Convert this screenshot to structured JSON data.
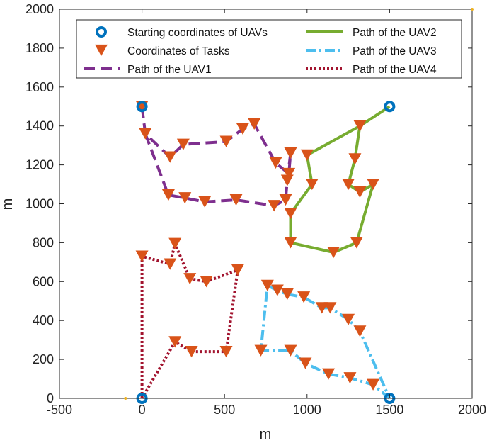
{
  "chart_data": {
    "type": "line",
    "title": "",
    "xlabel": "m",
    "ylabel": "m",
    "xlim": [
      -500,
      2000
    ],
    "ylim": [
      0,
      2000
    ],
    "xticks": [
      -500,
      0,
      500,
      1000,
      1500,
      2000
    ],
    "yticks": [
      0,
      200,
      400,
      600,
      800,
      1000,
      1200,
      1400,
      1600,
      1800,
      2000
    ],
    "grid": false,
    "legend_position": "top",
    "starts": [
      [
        0,
        1500
      ],
      [
        1500,
        1500
      ],
      [
        0,
        0
      ],
      [
        1500,
        0
      ]
    ],
    "tasks": [
      [
        0,
        1500
      ],
      [
        20,
        1360
      ],
      [
        170,
        1240
      ],
      [
        250,
        1305
      ],
      [
        510,
        1320
      ],
      [
        610,
        1385
      ],
      [
        680,
        1410
      ],
      [
        810,
        1210
      ],
      [
        890,
        1155
      ],
      [
        900,
        1260
      ],
      [
        880,
        1120
      ],
      [
        870,
        1020
      ],
      [
        800,
        990
      ],
      [
        570,
        1020
      ],
      [
        380,
        1010
      ],
      [
        260,
        1030
      ],
      [
        160,
        1045
      ],
      [
        1000,
        1250
      ],
      [
        1030,
        1100
      ],
      [
        1250,
        1100
      ],
      [
        1320,
        1060
      ],
      [
        1400,
        1100
      ],
      [
        1290,
        1230
      ],
      [
        1320,
        1400
      ],
      [
        900,
        950
      ],
      [
        900,
        800
      ],
      [
        1160,
        750
      ],
      [
        1300,
        800
      ],
      [
        0,
        730
      ],
      [
        170,
        690
      ],
      [
        200,
        795
      ],
      [
        290,
        615
      ],
      [
        390,
        600
      ],
      [
        580,
        660
      ],
      [
        200,
        290
      ],
      [
        300,
        240
      ],
      [
        510,
        240
      ],
      [
        760,
        580
      ],
      [
        820,
        555
      ],
      [
        880,
        535
      ],
      [
        980,
        520
      ],
      [
        1090,
        465
      ],
      [
        1140,
        465
      ],
      [
        1250,
        405
      ],
      [
        1320,
        345
      ],
      [
        1400,
        70
      ],
      [
        1260,
        105
      ],
      [
        1130,
        125
      ],
      [
        990,
        180
      ],
      [
        900,
        245
      ],
      [
        720,
        245
      ]
    ],
    "series": [
      {
        "name": "Path of the UAV1",
        "color": "#7E2F8E",
        "style": "dashed",
        "points": [
          [
            0,
            1500
          ],
          [
            20,
            1360
          ],
          [
            170,
            1240
          ],
          [
            250,
            1305
          ],
          [
            510,
            1320
          ],
          [
            610,
            1385
          ],
          [
            680,
            1410
          ],
          [
            810,
            1210
          ],
          [
            890,
            1155
          ],
          [
            900,
            1260
          ],
          [
            880,
            1120
          ],
          [
            870,
            1020
          ],
          [
            800,
            990
          ],
          [
            570,
            1020
          ],
          [
            380,
            1010
          ],
          [
            260,
            1030
          ],
          [
            160,
            1045
          ],
          [
            20,
            1360
          ]
        ]
      },
      {
        "name": "Path of the UAV2",
        "color": "#77AC30",
        "style": "solid",
        "points": [
          [
            1500,
            1500
          ],
          [
            1320,
            1400
          ],
          [
            1290,
            1230
          ],
          [
            1250,
            1100
          ],
          [
            1320,
            1060
          ],
          [
            1400,
            1100
          ],
          [
            1300,
            800
          ],
          [
            1160,
            750
          ],
          [
            900,
            800
          ],
          [
            900,
            950
          ],
          [
            1030,
            1100
          ],
          [
            1000,
            1250
          ],
          [
            1320,
            1400
          ]
        ]
      },
      {
        "name": "Path of the UAV3",
        "color": "#4DBEEE",
        "style": "dashdot",
        "points": [
          [
            1500,
            0
          ],
          [
            1400,
            70
          ],
          [
            1260,
            105
          ],
          [
            1130,
            125
          ],
          [
            990,
            180
          ],
          [
            900,
            245
          ],
          [
            720,
            245
          ],
          [
            760,
            580
          ],
          [
            820,
            555
          ],
          [
            880,
            535
          ],
          [
            980,
            520
          ],
          [
            1090,
            465
          ],
          [
            1140,
            465
          ],
          [
            1250,
            405
          ],
          [
            1320,
            345
          ],
          [
            1500,
            0
          ]
        ]
      },
      {
        "name": "Path of the UAV4",
        "color": "#A2142F",
        "style": "dotted",
        "points": [
          [
            0,
            0
          ],
          [
            0,
            730
          ],
          [
            170,
            690
          ],
          [
            200,
            795
          ],
          [
            290,
            615
          ],
          [
            390,
            600
          ],
          [
            580,
            660
          ],
          [
            510,
            240
          ],
          [
            300,
            240
          ],
          [
            200,
            290
          ],
          [
            0,
            0
          ]
        ]
      }
    ],
    "legend": [
      {
        "label": "Starting coordinates of UAVs",
        "kind": "start"
      },
      {
        "label": "Coordinates of Tasks",
        "kind": "task"
      },
      {
        "label": "Path of the UAV1",
        "kind": "line",
        "series": 0
      },
      {
        "label": "Path of the UAV2",
        "kind": "line",
        "series": 1
      },
      {
        "label": "Path of the UAV3",
        "kind": "line",
        "series": 2
      },
      {
        "label": "Path of the UAV4",
        "kind": "line",
        "series": 3
      }
    ],
    "start_color": "#0072BD",
    "task_color": "#D95319"
  }
}
